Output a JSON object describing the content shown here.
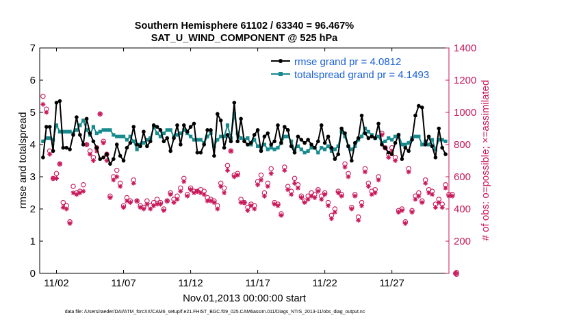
{
  "chart_data": {
    "type": "line",
    "title_line1": "Southern Hemisphere 61102 / 63340 = 96.467%",
    "title_line2": "SAT_U_WIND_COMPONENT @ 525 hPa",
    "xlabel": "Nov.01,2013 00:00:00 start",
    "ylabel_left": "rmse and totalspread",
    "ylabel_right": "# of obs: o=possible; ×=assimilated",
    "footer": "data file: /Users/raeder/DAI/ATM_forcXX/CAM6_setup/f.e21.FHIST_BGC.f09_025.CAM6assim.011/Diags_NTrS_2013-11/obs_diag_output.nc",
    "x_tick_labels": [
      "11/02",
      "11/07",
      "11/12",
      "11/17",
      "11/22",
      "11/27"
    ],
    "x_tick_days": [
      2,
      7,
      12,
      17,
      22,
      27
    ],
    "xlim_days": [
      0.75,
      31.25
    ],
    "ylim_left": [
      0,
      7
    ],
    "y_ticks_left": [
      "0",
      "1",
      "2",
      "3",
      "4",
      "5",
      "6",
      "7"
    ],
    "ylim_right": [
      0,
      1400
    ],
    "y_ticks_right": [
      "0",
      "200",
      "400",
      "600",
      "800",
      "1000",
      "1200",
      "1400"
    ],
    "grid": false,
    "legend_position": "top-right",
    "colors": {
      "rmse": "#000000",
      "spread": "#168a8c",
      "obs": "#c8175a",
      "legend_text": "#1a5fd6"
    },
    "series": [
      {
        "name": "rmse grand pr = 4.0812",
        "axis": "left",
        "x_start_day": 1.0,
        "x_step_days": 0.25,
        "values": [
          3.6,
          4.55,
          4.55,
          3.8,
          5.3,
          5.35,
          3.9,
          3.9,
          3.85,
          4.3,
          4.85,
          4.3,
          4.0,
          4.8,
          4.35,
          4.1,
          3.9,
          3.55,
          3.6,
          3.7,
          3.4,
          3.55,
          4.0,
          3.65,
          3.5,
          3.9,
          4.05,
          4.55,
          4.0,
          3.95,
          4.4,
          3.95,
          4.1,
          4.6,
          4.55,
          4.45,
          4.1,
          4.2,
          3.8,
          4.2,
          4.6,
          4.0,
          4.6,
          4.4,
          4.55,
          4.65,
          3.75,
          3.75,
          4.0,
          4.45,
          4.45,
          3.65,
          4.95,
          4.75,
          3.9,
          4.3,
          4.1,
          5.3,
          4.1,
          4.8,
          4.1,
          4.0,
          4.05,
          4.3,
          4.45,
          3.8,
          4.25,
          4.35,
          4.0,
          4.1,
          4.6,
          4.05,
          4.55,
          4.45,
          3.95,
          3.75,
          4.25,
          4.15,
          4.05,
          4.15,
          4.0,
          3.9,
          4.1,
          4.6,
          4.05,
          4.25,
          3.9,
          3.55,
          3.7,
          4.5,
          4.35,
          3.95,
          3.5,
          4.05,
          4.2,
          4.9,
          4.35,
          4.2,
          4.25,
          4.2,
          4.65,
          4.0,
          3.9,
          3.75,
          3.7,
          4.05,
          4.3,
          3.55,
          3.9,
          3.8,
          4.15,
          4.9,
          5.2,
          5.15,
          4.0,
          4.25,
          3.95,
          3.6,
          4.5,
          3.9,
          3.7
        ]
      },
      {
        "name": "totalspread grand pr = 4.1493",
        "axis": "left",
        "x_start_day": 1.0,
        "x_step_days": 0.25,
        "values": [
          4.1,
          4.2,
          4.2,
          4.15,
          4.6,
          4.4,
          4.4,
          4.4,
          4.4,
          4.35,
          4.45,
          4.6,
          4.75,
          4.45,
          4.3,
          4.55,
          4.35,
          4.4,
          4.45,
          4.45,
          4.45,
          4.3,
          4.25,
          4.25,
          4.25,
          4.15,
          4.25,
          4.1,
          3.85,
          4.0,
          4.05,
          4.15,
          4.2,
          4.55,
          4.35,
          4.25,
          4.35,
          4.45,
          4.45,
          4.25,
          4.3,
          4.35,
          4.45,
          4.35,
          4.25,
          4.15,
          4.15,
          4.15,
          4.05,
          4.25,
          4.35,
          3.95,
          4.15,
          4.25,
          4.25,
          4.6,
          4.2,
          4.95,
          4.35,
          4.2,
          4.15,
          4.2,
          4.0,
          4.15,
          3.95,
          3.9,
          4.0,
          3.85,
          3.9,
          3.85,
          3.9,
          4.05,
          4.25,
          4.25,
          4.1,
          3.85,
          3.95,
          3.85,
          3.75,
          3.8,
          3.9,
          3.9,
          3.75,
          3.9,
          3.85,
          3.95,
          3.8,
          3.85,
          3.95,
          4.4,
          4.25,
          3.95,
          3.85,
          3.95,
          4.15,
          4.25,
          4.5,
          4.4,
          4.3,
          4.2,
          4.25,
          4.05,
          4.1,
          4.2,
          4.15,
          4.25,
          4.3,
          4.0,
          4.0,
          4.05,
          4.2,
          4.25,
          4.25,
          4.0,
          4.1,
          4.0,
          4.15,
          3.85,
          4.15,
          4.15,
          4.1
        ]
      },
      {
        "name": "possible",
        "axis": "right",
        "marker": "circle",
        "x_start_day": 1.0,
        "x_step_days": 0.25,
        "values": [
          1100,
          1020,
          760,
          590,
          620,
          680,
          440,
          420,
          320,
          540,
          500,
          510,
          550,
          800,
          760,
          720,
          780,
          990,
          820,
          740,
          480,
          600,
          640,
          560,
          420,
          470,
          450,
          580,
          450,
          420,
          410,
          450,
          420,
          440,
          460,
          440,
          400,
          450,
          500,
          460,
          480,
          530,
          590,
          490,
          530,
          510,
          510,
          520,
          510,
          470,
          460,
          450,
          420,
          560,
          530,
          670,
          760,
          610,
          620,
          460,
          440,
          410,
          430,
          420,
          570,
          610,
          500,
          560,
          650,
          440,
          430,
          370,
          660,
          540,
          510,
          590,
          550,
          480,
          450,
          480,
          500,
          490,
          520,
          480,
          500,
          440,
          360,
          400,
          510,
          490,
          680,
          620,
          410,
          490,
          350,
          440,
          650,
          560,
          510,
          520,
          600,
          870,
          780,
          740,
          780,
          720,
          390,
          400,
          320,
          650,
          390,
          480,
          500,
          450,
          580,
          520,
          510,
          430,
          460,
          430,
          550,
          490,
          490,
          0
        ]
      },
      {
        "name": "assimilated",
        "axis": "right",
        "marker": "star",
        "x_start_day": 1.0,
        "x_step_days": 0.25,
        "values": [
          1050,
          1000,
          740,
          590,
          590,
          680,
          410,
          400,
          310,
          500,
          490,
          500,
          510,
          800,
          740,
          700,
          760,
          990,
          810,
          700,
          470,
          580,
          600,
          540,
          410,
          450,
          440,
          560,
          450,
          410,
          400,
          430,
          400,
          420,
          430,
          430,
          390,
          450,
          490,
          440,
          460,
          510,
          570,
          480,
          520,
          500,
          510,
          500,
          490,
          450,
          450,
          440,
          400,
          540,
          500,
          640,
          760,
          600,
          610,
          440,
          440,
          390,
          420,
          400,
          550,
          580,
          480,
          540,
          620,
          430,
          420,
          360,
          640,
          520,
          490,
          560,
          530,
          470,
          440,
          460,
          480,
          470,
          510,
          460,
          490,
          420,
          340,
          380,
          500,
          480,
          660,
          600,
          400,
          480,
          330,
          420,
          630,
          540,
          490,
          500,
          580,
          860,
          780,
          720,
          760,
          700,
          380,
          390,
          310,
          630,
          380,
          460,
          480,
          440,
          560,
          500,
          490,
          410,
          440,
          410,
          530,
          480,
          480,
          0
        ]
      }
    ]
  }
}
